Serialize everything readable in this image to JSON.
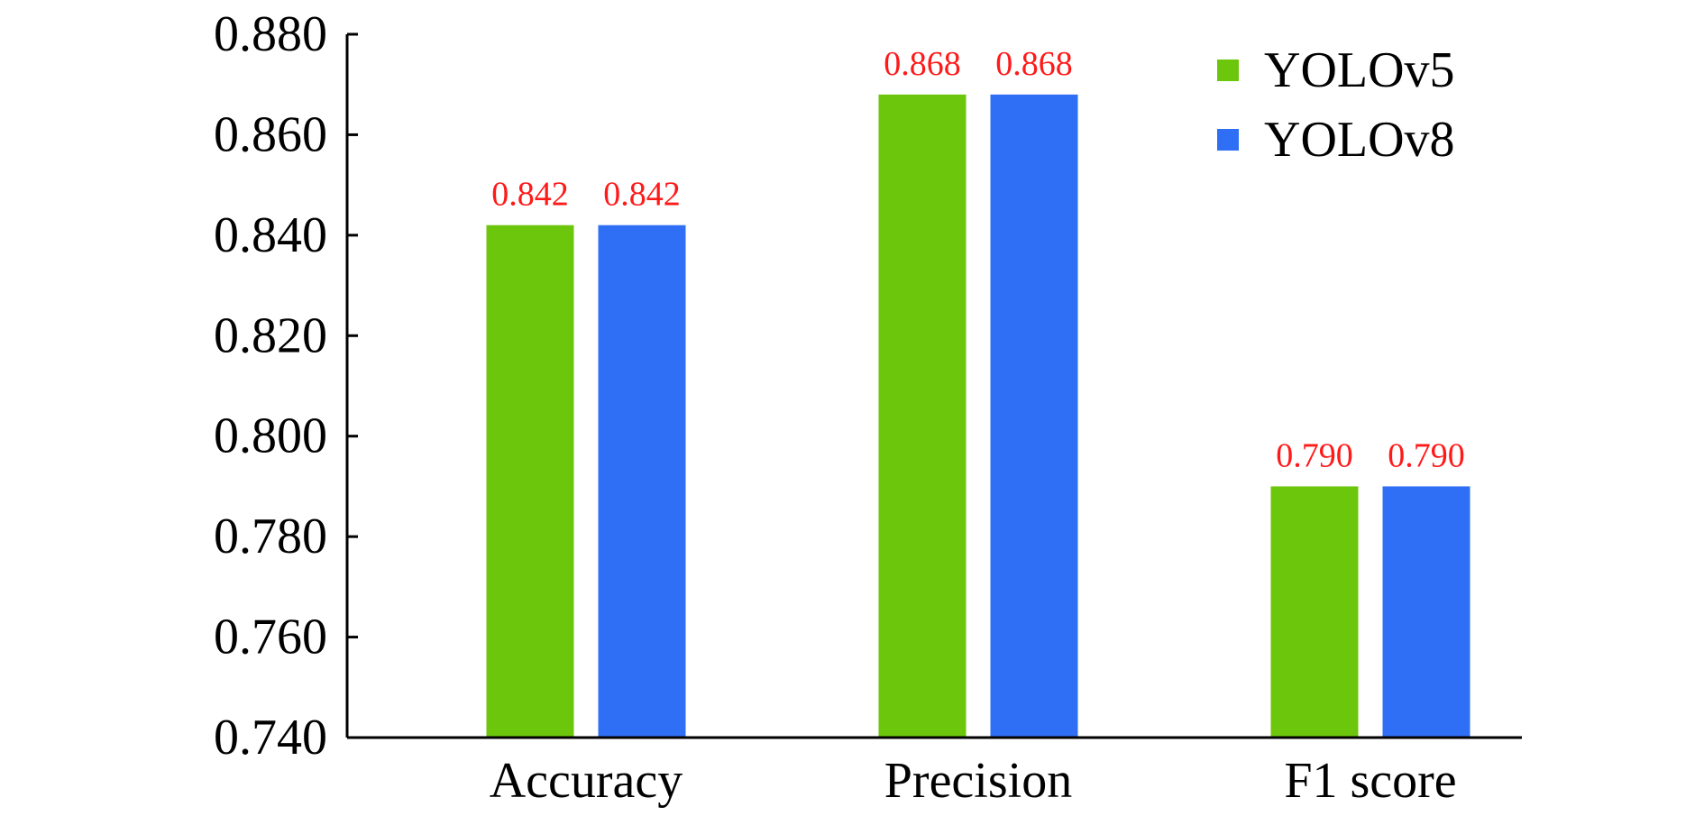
{
  "chart_data": {
    "type": "bar",
    "categories": [
      "Accuracy",
      "Precision",
      "F1 score"
    ],
    "series": [
      {
        "name": "YOLOv5",
        "values": [
          0.842,
          0.868,
          0.79
        ],
        "color": "#6cc60c"
      },
      {
        "name": "YOLOv8",
        "values": [
          0.842,
          0.868,
          0.79
        ],
        "color": "#2f6ff5"
      }
    ],
    "data_labels": [
      [
        "0.842",
        "0.868",
        "0.790"
      ],
      [
        "0.842",
        "0.868",
        "0.790"
      ]
    ],
    "data_label_color": "#ff1a1a",
    "yticks": [
      "0.740",
      "0.760",
      "0.780",
      "0.800",
      "0.820",
      "0.840",
      "0.860",
      "0.880"
    ],
    "ylim": [
      0.74,
      0.88
    ],
    "title": "",
    "xlabel": "",
    "ylabel": "",
    "grid": false,
    "legend_position": "top-right"
  }
}
